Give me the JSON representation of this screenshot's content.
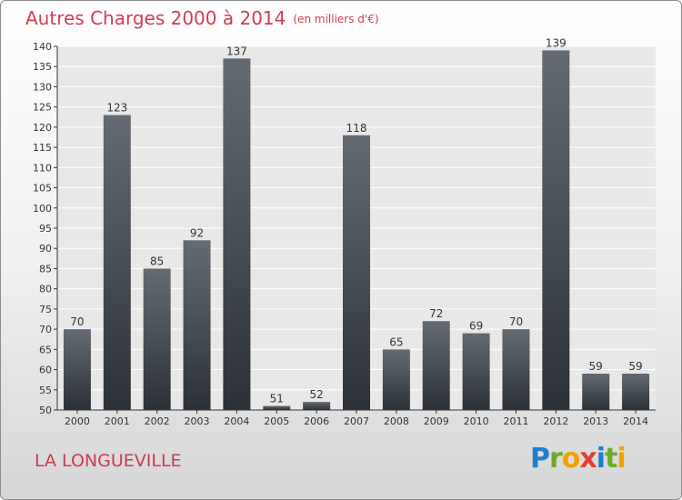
{
  "header": {
    "title": "Autres Charges 2000 à 2014",
    "subtitle": "(en milliers d'€)"
  },
  "footer": {
    "place": "LA LONGUEVILLE",
    "brand_letters": [
      {
        "ch": "P",
        "color": "#1e7fc8"
      },
      {
        "ch": "r",
        "color": "#6aac2a"
      },
      {
        "ch": "o",
        "color": "#f0a000"
      },
      {
        "ch": "x",
        "color": "#e33b3b"
      },
      {
        "ch": "i",
        "color": "#1e7fc8"
      },
      {
        "ch": "t",
        "color": "#6aac2a"
      },
      {
        "ch": "i",
        "color": "#f0a000"
      }
    ]
  },
  "colors": {
    "bar_top": "#646b72",
    "bar_bottom": "#2b3137",
    "plot_bg": "#e8e8e8",
    "grid": "#ffffff",
    "title": "#d23c50"
  },
  "chart_data": {
    "type": "bar",
    "title": "Autres Charges 2000 à 2014",
    "subtitle": "(en milliers d'€)",
    "xlabel": "",
    "ylabel": "",
    "categories": [
      "2000",
      "2001",
      "2002",
      "2003",
      "2004",
      "2005",
      "2006",
      "2007",
      "2008",
      "2009",
      "2010",
      "2011",
      "2012",
      "2013",
      "2014"
    ],
    "values": [
      70,
      123,
      85,
      92,
      137,
      51,
      52,
      118,
      65,
      72,
      69,
      70,
      139,
      59,
      59
    ],
    "ylim": [
      50,
      140
    ],
    "yticks": [
      50,
      55,
      60,
      65,
      70,
      75,
      80,
      85,
      90,
      95,
      100,
      105,
      110,
      115,
      120,
      125,
      130,
      135,
      140
    ],
    "grid": true,
    "data_labels": true
  }
}
